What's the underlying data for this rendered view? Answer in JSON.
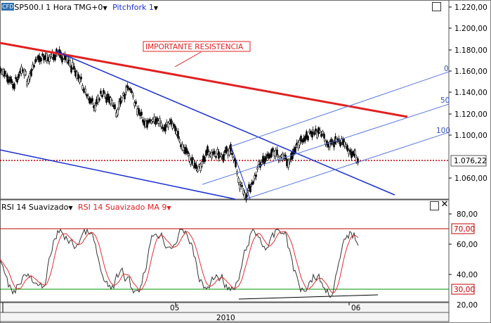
{
  "header": {
    "logo_text": "CFD",
    "symbol": "SP500.I",
    "timeframe": "1 Hora",
    "timezone": "TMG+0",
    "drawing_tool": "Pitchfork 1"
  },
  "annotation": {
    "text": "IMPORTANTE RESISTENCIA"
  },
  "pitchfork_labels": [
    "0",
    "50",
    "100"
  ],
  "price_axis": {
    "ticks": [
      "1.220,00",
      "1.200,00",
      "1.180,00",
      "1.160,00",
      "1.140,00",
      "1.120,00",
      "1.100,00",
      "1.060,00"
    ],
    "current_price": "1.076,22"
  },
  "rsi_panel": {
    "label": "RSI 14 Suavizado",
    "ma_label": "RSI 14 Suavizado MA 9",
    "ticks": [
      "80,00",
      "60,00",
      "40,00",
      "20,00"
    ],
    "upper_level": "70,00",
    "lower_level": "30,00"
  },
  "time_axis": {
    "labels": [
      "05",
      "06"
    ],
    "year": "2010"
  },
  "colors": {
    "resistance_line": "#e02020",
    "channel_line": "#1a2fd0",
    "pitchfork": "#5a78e0",
    "rsi_line": "#333333",
    "rsi_ma": "#e03030",
    "upper_level": "#c00000",
    "lower_level": "#009000",
    "price_dotted": "#c00000"
  },
  "icons": {
    "close": "close-icon",
    "maximize": "maximize-icon",
    "dropdown": "triangle-down-icon"
  }
}
